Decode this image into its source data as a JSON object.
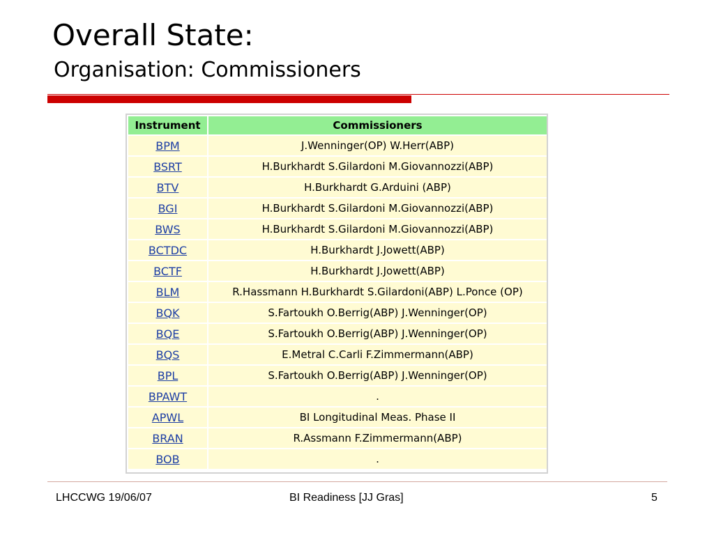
{
  "slide": {
    "title": "Overall State:",
    "subtitle": "Organisation: Commissioners"
  },
  "table": {
    "headers": [
      "Instrument",
      "Commissioners"
    ],
    "rows": [
      {
        "instrument": "BPM",
        "commissioners": "J.Wenninger(OP) W.Herr(ABP)"
      },
      {
        "instrument": "BSRT",
        "commissioners": "H.Burkhardt S.Gilardoni M.Giovannozzi(ABP)"
      },
      {
        "instrument": "BTV",
        "commissioners": "H.Burkhardt G.Arduini (ABP)"
      },
      {
        "instrument": "BGI",
        "commissioners": "H.Burkhardt S.Gilardoni M.Giovannozzi(ABP)"
      },
      {
        "instrument": "BWS",
        "commissioners": "H.Burkhardt S.Gilardoni M.Giovannozzi(ABP)"
      },
      {
        "instrument": "BCTDC",
        "commissioners": "H.Burkhardt J.Jowett(ABP)"
      },
      {
        "instrument": "BCTF",
        "commissioners": "H.Burkhardt J.Jowett(ABP)"
      },
      {
        "instrument": "BLM",
        "commissioners": "R.Hassmann H.Burkhardt S.Gilardoni(ABP) L.Ponce (OP)"
      },
      {
        "instrument": "BQK",
        "commissioners": "S.Fartoukh O.Berrig(ABP) J.Wenninger(OP)"
      },
      {
        "instrument": "BQE",
        "commissioners": "S.Fartoukh O.Berrig(ABP) J.Wenninger(OP)"
      },
      {
        "instrument": "BQS",
        "commissioners": "E.Metral C.Carli F.Zimmermann(ABP)"
      },
      {
        "instrument": "BPL",
        "commissioners": "S.Fartoukh O.Berrig(ABP) J.Wenninger(OP)"
      },
      {
        "instrument": "BPAWT",
        "commissioners": "."
      },
      {
        "instrument": "APWL",
        "commissioners": "BI Longitudinal Meas. Phase II"
      },
      {
        "instrument": "BRAN",
        "commissioners": "R.Assmann F.Zimmermann(ABP)"
      },
      {
        "instrument": "BOB",
        "commissioners": "."
      }
    ]
  },
  "footer": {
    "left": "LHCCWG 19/06/07",
    "center": "BI Readiness [JJ Gras]",
    "page_number": "5"
  },
  "colors": {
    "header_bg": "#93ee93",
    "cell_bg": "#fffbd3",
    "link": "#1d3ea4",
    "accent_rule": "#cc0000"
  }
}
